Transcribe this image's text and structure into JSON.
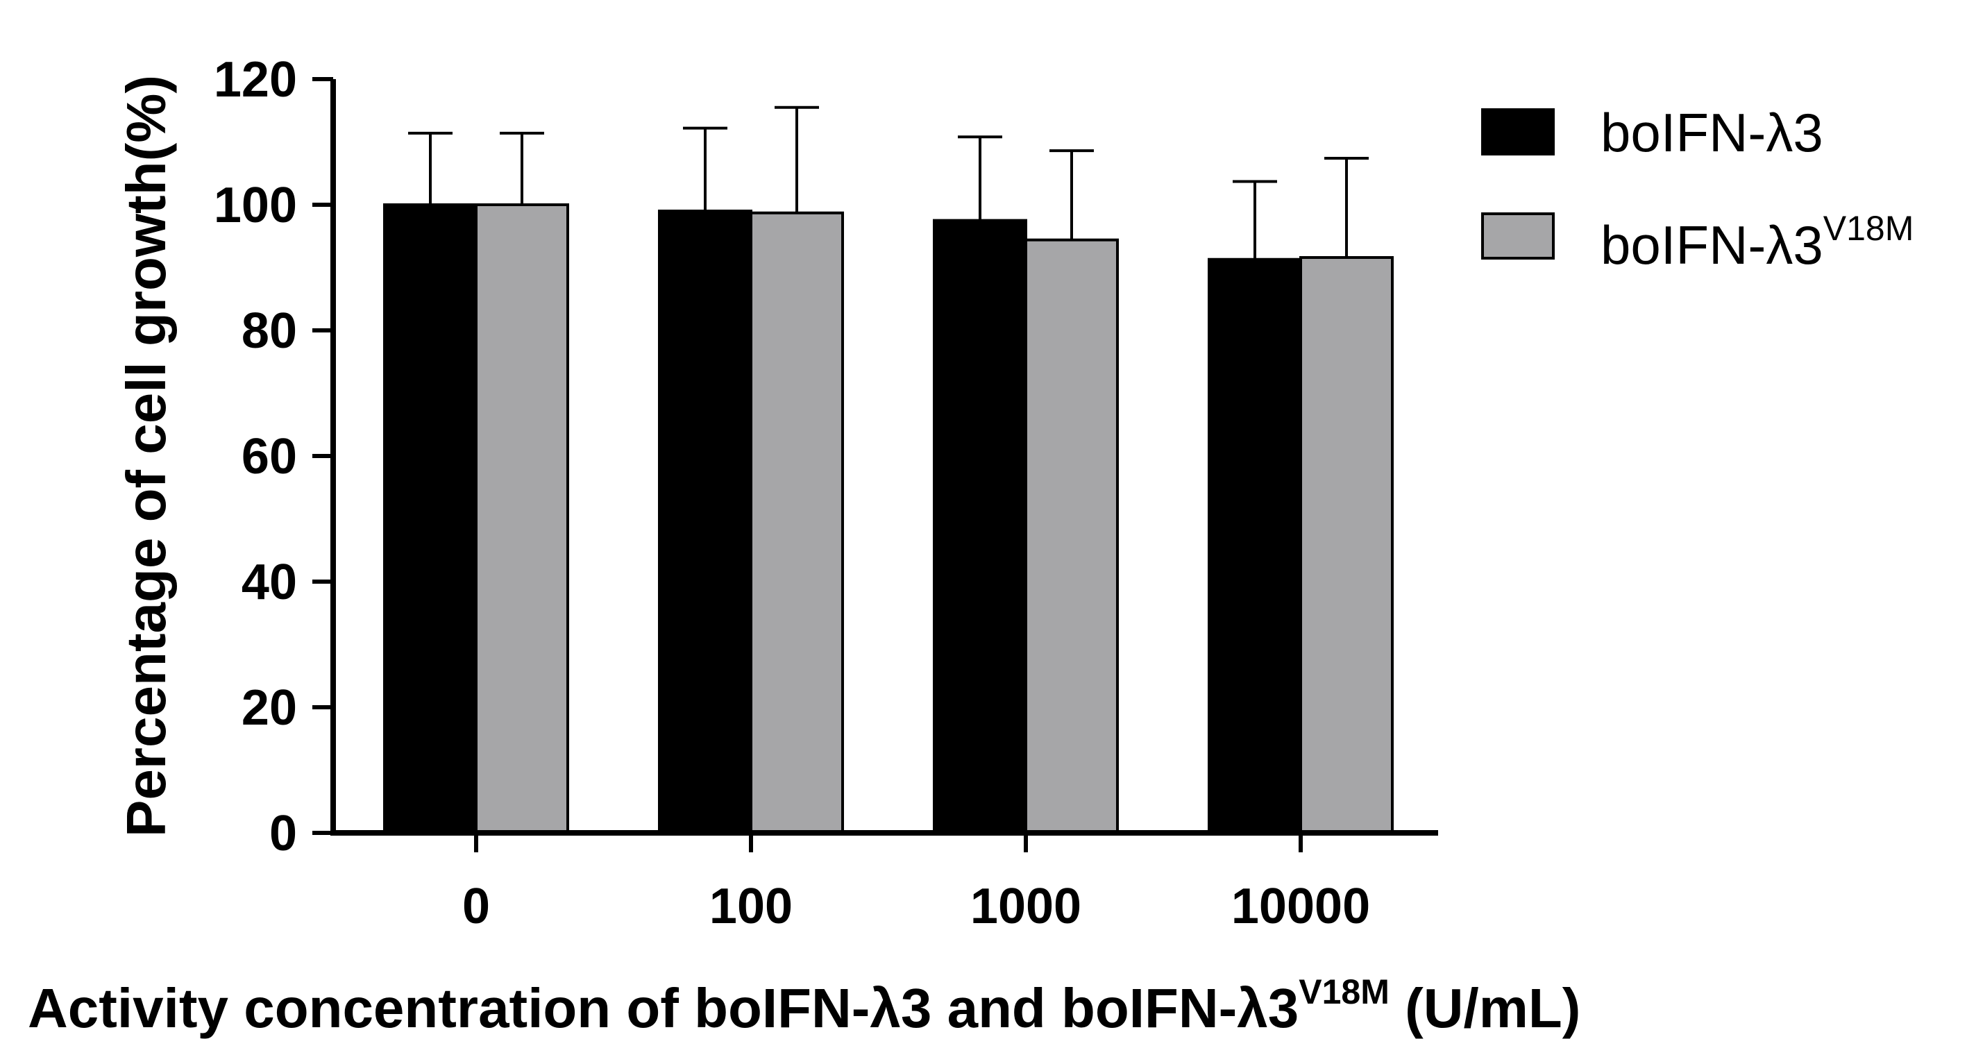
{
  "chart_data": {
    "type": "bar",
    "categories": [
      "0",
      "100",
      "1000",
      "10000"
    ],
    "series": [
      {
        "name": "boIFN-λ3",
        "name_sup": "",
        "color": "#000000",
        "values": [
          100,
          99,
          97.5,
          91.3
        ],
        "errors": [
          11.4,
          13.2,
          13.3,
          12.4
        ]
      },
      {
        "name": "boIFN-λ3",
        "name_sup": "V18M",
        "color": "#a6a6a8",
        "values": [
          100,
          98.7,
          94.4,
          91.6
        ],
        "errors": [
          11.4,
          16.8,
          14.2,
          15.8
        ]
      }
    ],
    "ylim": [
      0,
      120
    ],
    "yticks": [
      "0",
      "20",
      "40",
      "60",
      "80",
      "100",
      "120"
    ],
    "ylabel": "Percentage of cell growth(%)",
    "xlabel": "Activity concentration of boIFN-λ3 and boIFN-λ3",
    "xlabel_sup": "V18M",
    "xlabel_suffix": " (U/mL)",
    "legend_position": "top-right",
    "grid": false
  }
}
